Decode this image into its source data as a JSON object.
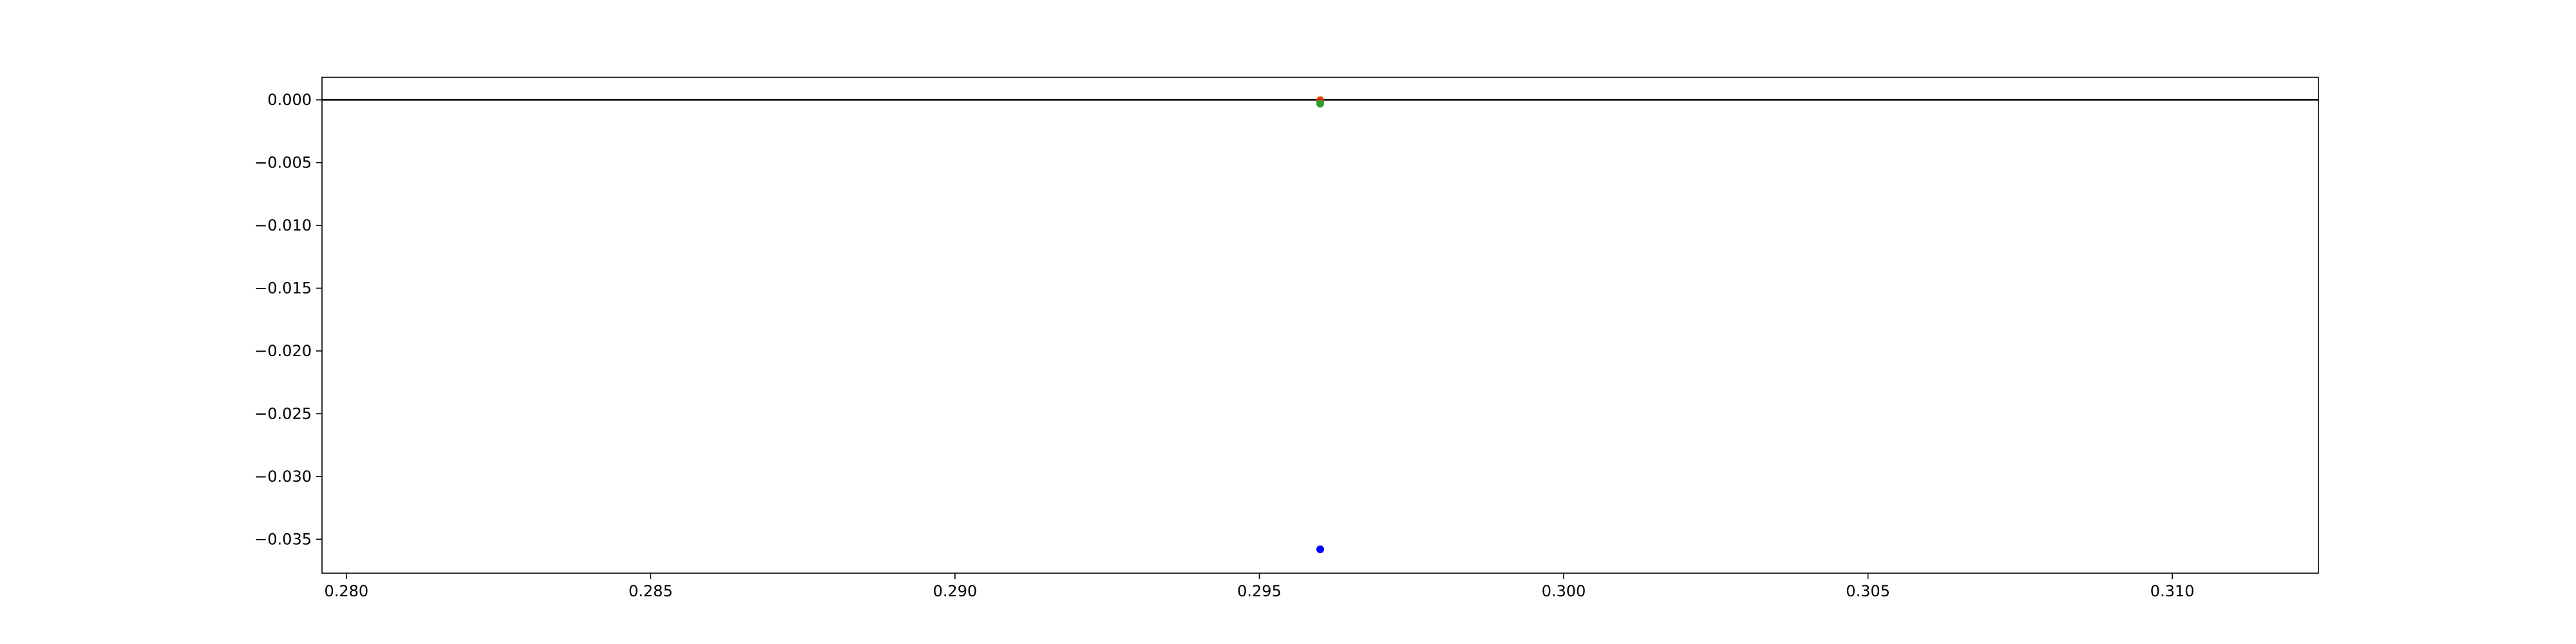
{
  "chart_data": {
    "type": "scatter",
    "title": "",
    "xlabel": "",
    "ylabel": "",
    "xlim": [
      0.2796,
      0.3124
    ],
    "ylim": [
      -0.0377,
      0.0018
    ],
    "x_ticks": [
      {
        "value": 0.28,
        "label": "0.280"
      },
      {
        "value": 0.285,
        "label": "0.285"
      },
      {
        "value": 0.29,
        "label": "0.290"
      },
      {
        "value": 0.295,
        "label": "0.295"
      },
      {
        "value": 0.3,
        "label": "0.300"
      },
      {
        "value": 0.305,
        "label": "0.305"
      },
      {
        "value": 0.31,
        "label": "0.310"
      }
    ],
    "y_ticks": [
      {
        "value": 0.0,
        "label": "0.000"
      },
      {
        "value": -0.005,
        "label": "−0.005"
      },
      {
        "value": -0.01,
        "label": "−0.010"
      },
      {
        "value": -0.015,
        "label": "−0.015"
      },
      {
        "value": -0.02,
        "label": "−0.020"
      },
      {
        "value": -0.025,
        "label": "−0.025"
      },
      {
        "value": -0.03,
        "label": "−0.030"
      },
      {
        "value": -0.035,
        "label": "−0.035"
      }
    ],
    "reference_line": {
      "y": 0.0,
      "color": "#000000"
    },
    "series": [
      {
        "color": "#ff7f0e",
        "points": [
          {
            "x": 0.296,
            "y": 0.0
          }
        ]
      },
      {
        "color": "#d62728",
        "points": [
          {
            "x": 0.296,
            "y": -0.0001
          }
        ]
      },
      {
        "color": "#2ca02c",
        "points": [
          {
            "x": 0.296,
            "y": -0.0003
          }
        ]
      },
      {
        "color": "#0000ff",
        "points": [
          {
            "x": 0.296,
            "y": -0.0358
          }
        ]
      }
    ],
    "grid": false,
    "legend": "none"
  }
}
